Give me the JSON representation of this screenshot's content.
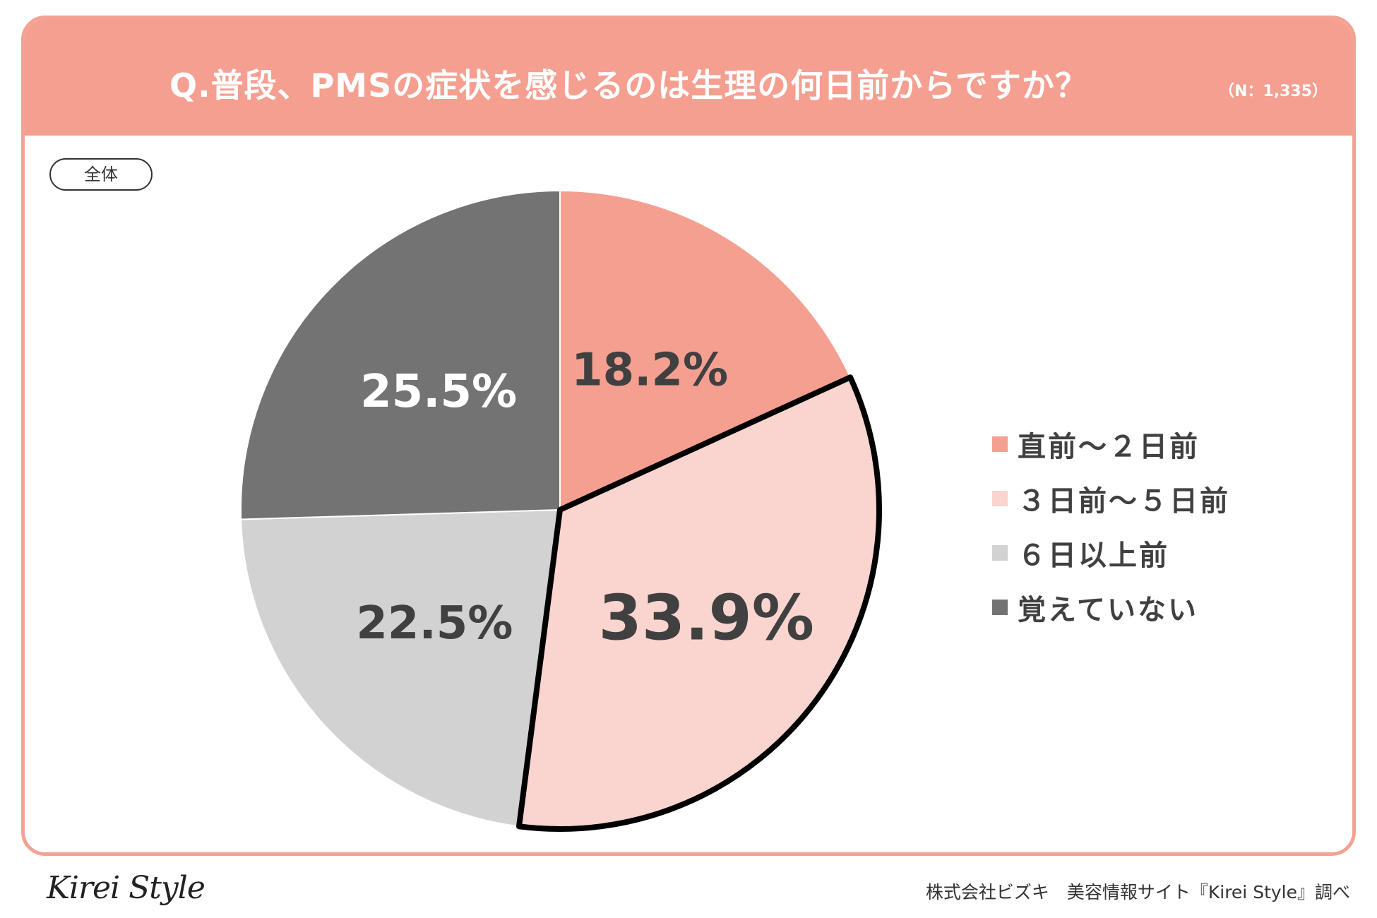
{
  "header": {
    "title": "Q.普段、PMSの症状を感じるのは生理の何日前からですか？",
    "sample_size": "（N：1,335）"
  },
  "badge": {
    "label": "全体"
  },
  "chart_data": {
    "type": "pie",
    "categories": [
      "直前～２日前",
      "３日前～５日前",
      "６日以上前",
      "覚えていない"
    ],
    "values": [
      18.2,
      33.9,
      22.5,
      25.5
    ],
    "value_labels": [
      "18.2%",
      "33.9%",
      "22.5%",
      "25.5%"
    ],
    "colors": [
      "#f59f91",
      "#fad5cf",
      "#d2d2d2",
      "#737373"
    ],
    "label_colors": [
      "#404040",
      "#404040",
      "#404040",
      "#ffffff"
    ],
    "highlighted_slice": "３日前～５日前",
    "start_angle": "12 o'clock",
    "direction": "clockwise",
    "legend_position": "right"
  },
  "footer": {
    "logo": "Kirei Style",
    "source": "株式会社ビズキ　美容情報サイト『Kirei Style』調べ"
  }
}
